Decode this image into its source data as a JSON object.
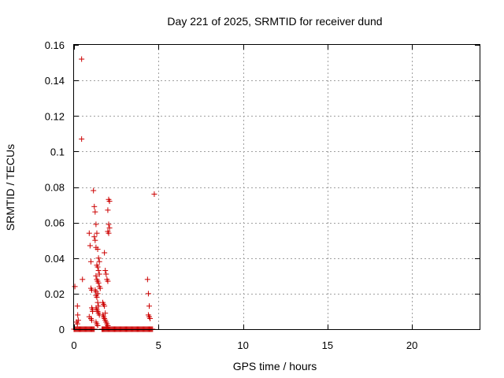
{
  "chart_data": {
    "type": "scatter",
    "title": "Day 221 of 2025, SRMTID for receiver dund",
    "xlabel": "GPS time / hours",
    "ylabel": "SRMTID / TECUs",
    "xlim": [
      0,
      24
    ],
    "ylim": [
      0,
      0.16
    ],
    "xticks": [
      0,
      5,
      10,
      15,
      20
    ],
    "xtick_labels": [
      "0",
      "5",
      "10",
      "15",
      "20"
    ],
    "yticks": [
      0,
      0.02,
      0.04,
      0.06,
      0.08,
      0.1,
      0.12,
      0.14,
      0.16
    ],
    "ytick_labels": [
      "0",
      "0.02",
      "0.04",
      "0.06",
      "0.08",
      "0.1",
      "0.12",
      "0.14",
      "0.16"
    ],
    "grid": true,
    "marker": "+",
    "color": "#cc0000",
    "series": [
      {
        "name": "SRMTID",
        "x": [
          0.45,
          0.45,
          0.5,
          0.05,
          0.2,
          0.22,
          0.25,
          0.15,
          0.2,
          0.9,
          0.95,
          1.0,
          1.0,
          1.05,
          1.05,
          1.1,
          1.1,
          0.9,
          1.0,
          1.05,
          1.15,
          1.2,
          1.25,
          1.3,
          1.35,
          1.2,
          1.25,
          1.3,
          1.4,
          1.45,
          1.5,
          1.35,
          1.4,
          1.45,
          1.5,
          1.3,
          1.35,
          1.4,
          1.45,
          1.5,
          1.55,
          1.25,
          1.3,
          1.4,
          1.3,
          1.35,
          1.4,
          1.45,
          1.3,
          1.35,
          1.4,
          1.45,
          1.5,
          1.3,
          1.35,
          1.4,
          1.7,
          1.75,
          1.8,
          1.85,
          1.7,
          1.75,
          1.8,
          1.85,
          1.9,
          1.95,
          2.0,
          1.8,
          1.85,
          1.9,
          1.95,
          2.0,
          2.05,
          2.1,
          2.05,
          2.1,
          2.0,
          2.05,
          2.0,
          1.9,
          1.95,
          2.0,
          4.35,
          4.4,
          4.45,
          4.4,
          4.45,
          4.5,
          4.75
        ],
        "y": [
          0.152,
          0.107,
          0.028,
          0.024,
          0.013,
          0.008,
          0.005,
          0.004,
          0.003,
          0.054,
          0.047,
          0.038,
          0.023,
          0.022,
          0.012,
          0.011,
          0.01,
          0.007,
          0.006,
          0.005,
          0.078,
          0.069,
          0.066,
          0.059,
          0.054,
          0.052,
          0.05,
          0.046,
          0.045,
          0.04,
          0.038,
          0.036,
          0.035,
          0.033,
          0.031,
          0.03,
          0.028,
          0.027,
          0.026,
          0.024,
          0.023,
          0.022,
          0.021,
          0.02,
          0.019,
          0.018,
          0.015,
          0.013,
          0.012,
          0.011,
          0.01,
          0.009,
          0.008,
          0.004,
          0.003,
          0.002,
          0.015,
          0.014,
          0.013,
          0.009,
          0.008,
          0.007,
          0.006,
          0.005,
          0.004,
          0.003,
          0.002,
          0.043,
          0.033,
          0.031,
          0.028,
          0.027,
          0.073,
          0.072,
          0.059,
          0.057,
          0.055,
          0.054,
          0.067,
          0.001,
          0.001,
          0.001,
          0.028,
          0.02,
          0.013,
          0.008,
          0.007,
          0.006,
          0.076
        ],
        "baseline_x": [
          0.0,
          0.05,
          0.1,
          0.15,
          0.2,
          0.25,
          0.3,
          0.35,
          0.4,
          0.45,
          0.5,
          0.55,
          0.6,
          0.65,
          0.7,
          0.75,
          0.8,
          0.85,
          0.9,
          0.95,
          1.0,
          1.05,
          1.1,
          1.15,
          1.2,
          1.65,
          1.7,
          1.75,
          1.8,
          1.85,
          1.9,
          1.95,
          2.0,
          2.05,
          2.1,
          2.15,
          2.2,
          2.25,
          2.3,
          2.35,
          2.4,
          2.45,
          2.5,
          2.55,
          2.6,
          2.65,
          2.7,
          2.75,
          2.8,
          2.85,
          2.9,
          2.95,
          3.0,
          3.05,
          3.1,
          3.15,
          3.2,
          3.25,
          3.3,
          3.35,
          3.4,
          3.45,
          3.5,
          3.55,
          3.6,
          3.65,
          3.7,
          3.75,
          3.8,
          3.85,
          3.9,
          3.95,
          4.0,
          4.05,
          4.1,
          4.15,
          4.2,
          4.25,
          4.3,
          4.35,
          4.4,
          4.45,
          4.5,
          4.55,
          4.6,
          4.65
        ],
        "baseline_y": 0
      }
    ]
  }
}
